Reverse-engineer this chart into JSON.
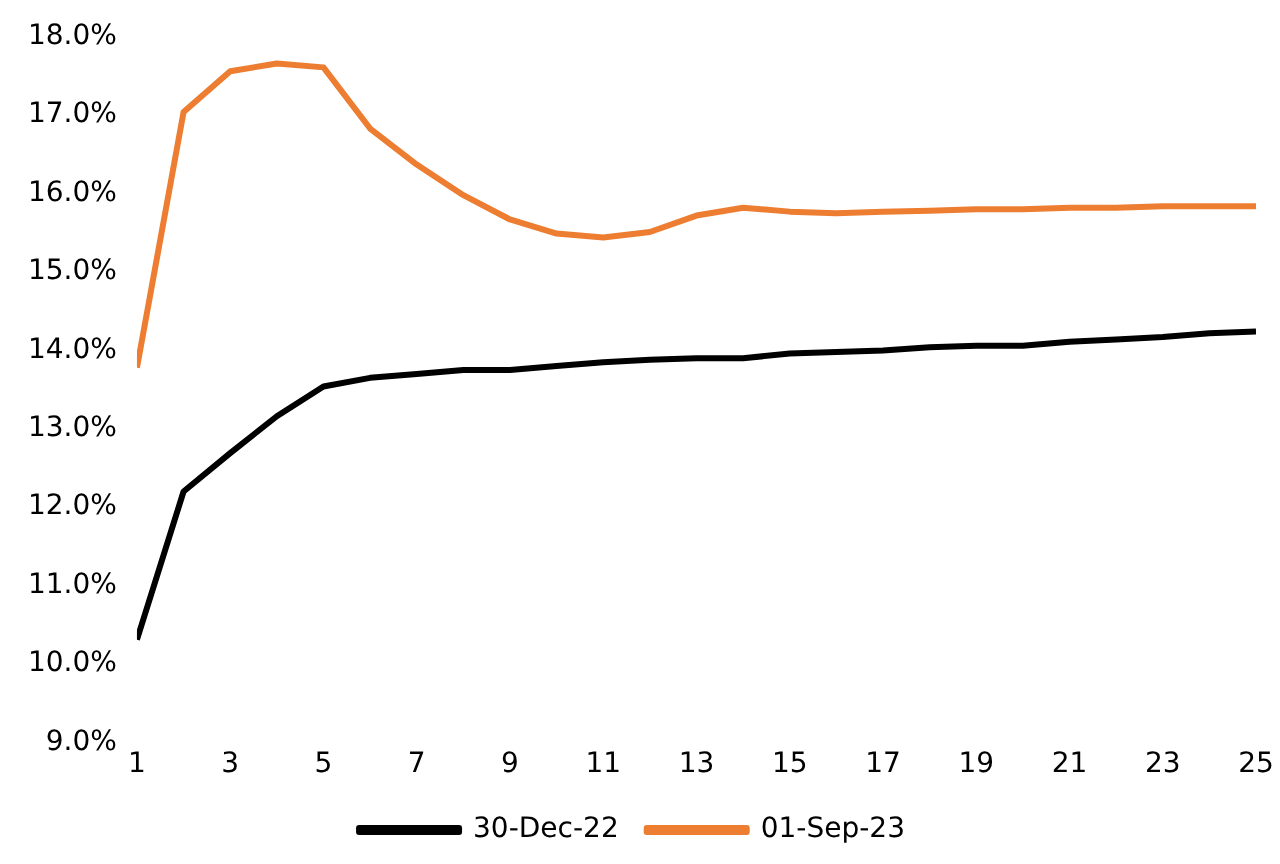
{
  "chart_data": {
    "type": "line",
    "x": [
      1,
      2,
      3,
      4,
      5,
      6,
      7,
      8,
      9,
      10,
      11,
      12,
      13,
      14,
      15,
      16,
      17,
      18,
      19,
      20,
      21,
      22,
      23,
      24,
      25
    ],
    "series": [
      {
        "name": "30-Dec-22",
        "color": "#000000",
        "values": [
          10.31,
          12.2,
          12.69,
          13.16,
          13.54,
          13.65,
          13.7,
          13.75,
          13.75,
          13.8,
          13.85,
          13.88,
          13.9,
          13.9,
          13.96,
          13.98,
          14.0,
          14.04,
          14.06,
          14.06,
          14.11,
          14.14,
          14.17,
          14.22,
          14.24
        ]
      },
      {
        "name": "01-Sep-23",
        "color": "#ed7d31",
        "values": [
          13.78,
          17.04,
          17.56,
          17.66,
          17.61,
          16.83,
          16.37,
          15.98,
          15.67,
          15.49,
          15.44,
          15.51,
          15.72,
          15.82,
          15.77,
          15.75,
          15.77,
          15.78,
          15.8,
          15.8,
          15.82,
          15.82,
          15.84,
          15.84,
          15.84
        ]
      }
    ],
    "xlim": [
      1,
      25
    ],
    "xticks": [
      1,
      3,
      5,
      7,
      9,
      11,
      13,
      15,
      17,
      19,
      21,
      23,
      25
    ],
    "ylim": [
      9,
      18
    ],
    "yticks": [
      {
        "value": 9,
        "label": "9.0%"
      },
      {
        "value": 10,
        "label": "10.0%"
      },
      {
        "value": 11,
        "label": "11.0%"
      },
      {
        "value": 12,
        "label": "12.0%"
      },
      {
        "value": 13,
        "label": "13.0%"
      },
      {
        "value": 14,
        "label": "14.0%"
      },
      {
        "value": 15,
        "label": "15.0%"
      },
      {
        "value": 16,
        "label": "16.0%"
      },
      {
        "value": 17,
        "label": "17.0%"
      },
      {
        "value": 18,
        "label": "18.0%"
      }
    ],
    "grid": false,
    "legend": "bottom",
    "line_style": "solid",
    "marker": "none"
  }
}
